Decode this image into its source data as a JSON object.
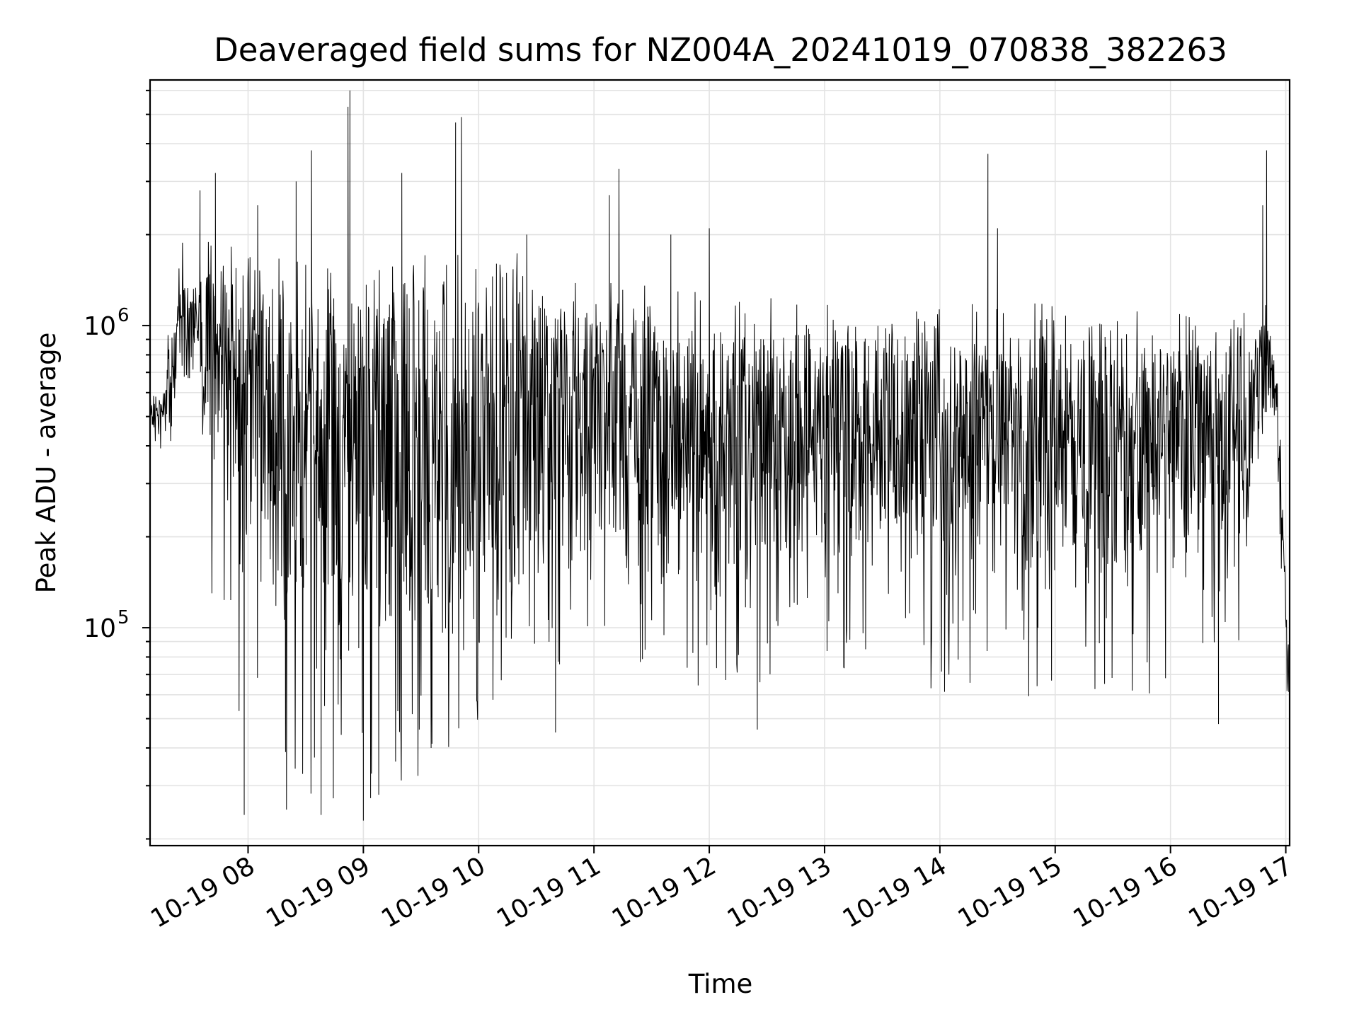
{
  "chart_data": {
    "type": "line",
    "title": "Deaveraged field sums for NZ004A_20241019_070838_382263",
    "xlabel": "Time",
    "ylabel": "Peak ADU - average",
    "yscale": "log",
    "grid": true,
    "grid_minor": true,
    "legend": "none",
    "line_color": "#000000",
    "xlim": [
      "2024-10-19T07:09:00",
      "2024-10-19T17:02:00"
    ],
    "ylim": [
      19000,
      6500000
    ],
    "x_ticks": [
      {
        "value": "2024-10-19T08:00:00",
        "label": "10-19 08"
      },
      {
        "value": "2024-10-19T09:00:00",
        "label": "10-19 09"
      },
      {
        "value": "2024-10-19T10:00:00",
        "label": "10-19 10"
      },
      {
        "value": "2024-10-19T11:00:00",
        "label": "10-19 11"
      },
      {
        "value": "2024-10-19T12:00:00",
        "label": "10-19 12"
      },
      {
        "value": "2024-10-19T13:00:00",
        "label": "10-19 13"
      },
      {
        "value": "2024-10-19T14:00:00",
        "label": "10-19 14"
      },
      {
        "value": "2024-10-19T15:00:00",
        "label": "10-19 15"
      },
      {
        "value": "2024-10-19T16:00:00",
        "label": "10-19 16"
      },
      {
        "value": "2024-10-19T17:00:00",
        "label": "10-19 17"
      }
    ],
    "y_ticks": [
      {
        "value": 100000,
        "base": "10",
        "exp": "5"
      },
      {
        "value": 1000000,
        "base": "10",
        "exp": "6"
      }
    ],
    "envelope": {
      "time": [
        "07:09",
        "07:15",
        "07:20",
        "07:25",
        "07:30",
        "07:40",
        "07:50",
        "08:00",
        "08:10",
        "08:20",
        "08:30",
        "08:40",
        "08:50",
        "09:00",
        "09:10",
        "09:20",
        "09:30",
        "09:40",
        "09:50",
        "10:00",
        "10:05",
        "10:10",
        "10:20",
        "10:30",
        "10:40",
        "10:50",
        "11:00",
        "11:10",
        "11:20",
        "11:30",
        "11:40",
        "11:50",
        "12:00",
        "12:10",
        "12:20",
        "12:30",
        "12:40",
        "12:50",
        "13:00",
        "13:10",
        "13:20",
        "13:30",
        "13:40",
        "13:50",
        "14:00",
        "14:10",
        "14:20",
        "14:30",
        "14:40",
        "14:50",
        "15:00",
        "15:10",
        "15:20",
        "15:30",
        "15:40",
        "15:50",
        "16:00",
        "16:10",
        "16:20",
        "16:30",
        "16:40",
        "16:45",
        "16:50",
        "16:55",
        "17:00",
        "17:02"
      ],
      "typical_high": [
        620000,
        560000,
        900000,
        1500000,
        1300000,
        1500000,
        1400000,
        1300000,
        1300000,
        1300000,
        1300000,
        1200000,
        1300000,
        1300000,
        1300000,
        1300000,
        1300000,
        1300000,
        1300000,
        1400000,
        1600000,
        1500000,
        1400000,
        1300000,
        1200000,
        1100000,
        1050000,
        1100000,
        1100000,
        1000000,
        1000000,
        1000000,
        1000000,
        1000000,
        950000,
        950000,
        950000,
        950000,
        900000,
        900000,
        900000,
        900000,
        900000,
        900000,
        900000,
        900000,
        900000,
        950000,
        950000,
        950000,
        900000,
        900000,
        900000,
        850000,
        850000,
        850000,
        850000,
        850000,
        850000,
        850000,
        850000,
        1000000,
        1100000,
        700000,
        150000,
        70000
      ],
      "typical_low": [
        480000,
        380000,
        440000,
        800000,
        700000,
        350000,
        200000,
        150000,
        130000,
        110000,
        100000,
        90000,
        90000,
        80000,
        80000,
        80000,
        80000,
        80000,
        80000,
        80000,
        80000,
        90000,
        100000,
        110000,
        130000,
        140000,
        190000,
        180000,
        170000,
        150000,
        140000,
        130000,
        120000,
        100000,
        110000,
        130000,
        150000,
        160000,
        160000,
        150000,
        150000,
        150000,
        140000,
        140000,
        140000,
        130000,
        140000,
        140000,
        140000,
        130000,
        130000,
        110000,
        110000,
        110000,
        120000,
        130000,
        140000,
        150000,
        150000,
        150000,
        160000,
        350000,
        500000,
        400000,
        80000,
        40000
      ],
      "floor": [
        460000,
        350000,
        400000,
        600000,
        600000,
        130000,
        75000,
        27000,
        28000,
        27000,
        26000,
        26000,
        26000,
        25000,
        29000,
        30000,
        31000,
        32000,
        37000,
        45000,
        48000,
        50000,
        55000,
        57000,
        60000,
        65000,
        90000,
        85000,
        70000,
        65000,
        65000,
        65000,
        62000,
        47000,
        55000,
        65000,
        66000,
        70000,
        70000,
        70000,
        70000,
        68000,
        63000,
        52000,
        58000,
        54000,
        60000,
        60000,
        58000,
        55000,
        53000,
        55000,
        57000,
        58000,
        57000,
        60000,
        60000,
        60000,
        60000,
        62000,
        70000,
        300000,
        480000,
        380000,
        70000,
        40000
      ]
    },
    "spikes": [
      {
        "time": "07:35",
        "value": 2800000
      },
      {
        "time": "07:43",
        "value": 3200000
      },
      {
        "time": "08:05",
        "value": 2500000
      },
      {
        "time": "08:25",
        "value": 3000000
      },
      {
        "time": "08:33",
        "value": 3800000
      },
      {
        "time": "08:52",
        "value": 5300000
      },
      {
        "time": "08:53",
        "value": 6000000
      },
      {
        "time": "09:20",
        "value": 3200000
      },
      {
        "time": "09:48",
        "value": 4700000
      },
      {
        "time": "09:51",
        "value": 4900000
      },
      {
        "time": "10:25",
        "value": 2000000
      },
      {
        "time": "11:08",
        "value": 2700000
      },
      {
        "time": "11:13",
        "value": 3300000
      },
      {
        "time": "11:40",
        "value": 2000000
      },
      {
        "time": "12:00",
        "value": 2100000
      },
      {
        "time": "14:25",
        "value": 3700000
      },
      {
        "time": "14:30",
        "value": 2100000
      },
      {
        "time": "16:48",
        "value": 2500000
      },
      {
        "time": "16:50",
        "value": 3800000
      }
    ],
    "dips": [
      {
        "time": "07:58",
        "value": 24000
      },
      {
        "time": "08:20",
        "value": 25000
      },
      {
        "time": "08:38",
        "value": 24000
      },
      {
        "time": "09:00",
        "value": 23000
      },
      {
        "time": "09:08",
        "value": 28000
      },
      {
        "time": "10:40",
        "value": 45000
      },
      {
        "time": "12:25",
        "value": 46000
      },
      {
        "time": "16:25",
        "value": 48000
      }
    ]
  }
}
